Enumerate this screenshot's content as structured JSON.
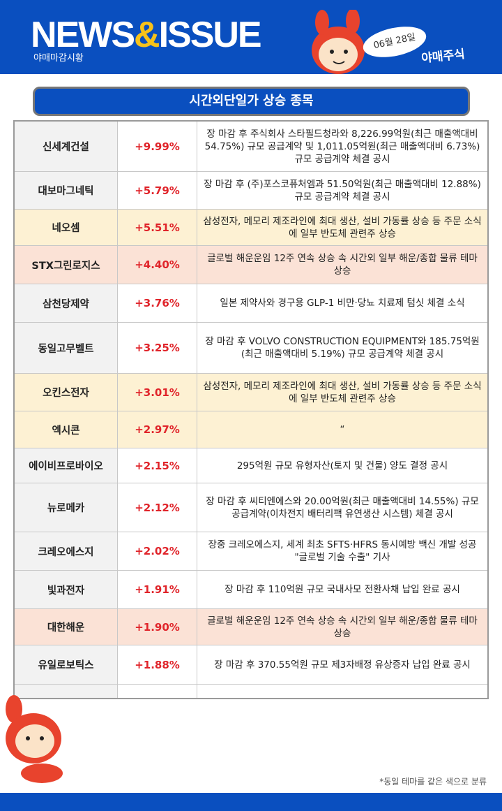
{
  "header": {
    "title_left": "NEWS",
    "title_amp": "&",
    "title_right": "ISSUE",
    "subtitle": "야매마감시황",
    "date": "06월 28일",
    "brand": "야매주식"
  },
  "section_title": "시간외단일가 상승 종목",
  "table": {
    "rows": [
      {
        "name": "신세계건설",
        "change": "+9.99%",
        "desc": "장 마감 후 주식회사 스타필드청라와 8,226.99억원(최근 매출액대비 54.75%) 규모 공급계약 및 1,011.05억원(최근 매출액대비 6.73%) 규모 공급계약 체결 공시",
        "color": "#f2f2f2"
      },
      {
        "name": "대보마그네틱",
        "change": "+5.79%",
        "desc": "장 마감 후 (주)포스코퓨처엠과 51.50억원(최근 매출액대비 12.88%) 규모 공급계약 체결 공시",
        "color": "#f2f2f2"
      },
      {
        "name": "네오셈",
        "change": "+5.51%",
        "desc": "삼성전자, 메모리 제조라인에 최대 생산, 설비 가동률 상승 등 주문 소식에 일부 반도체 관련주 상승",
        "color": "#fdf1d3"
      },
      {
        "name": "STX그린로지스",
        "change": "+4.40%",
        "desc": "글로벌 해운운임 12주 연속 상승 속 시간외 일부 해운/종합 물류 테마 상승",
        "color": "#fbe2d6"
      },
      {
        "name": "삼천당제약",
        "change": "+3.76%",
        "desc": "일본 제약사와 경구용 GLP-1 비만·당뇨 치료제 텀싯 체결 소식",
        "color": "#f2f2f2"
      },
      {
        "name": "동일고무벨트",
        "change": "+3.25%",
        "desc": "장 마감 후 VOLVO CONSTRUCTION EQUIPMENT와 185.75억원(최근 매출액대비 5.19%) 규모 공급계약 체결 공시",
        "color": "#f2f2f2"
      },
      {
        "name": "오킨스전자",
        "change": "+3.01%",
        "desc": "삼성전자, 메모리 제조라인에 최대 생산, 설비 가동률 상승 등 주문 소식에 일부 반도체 관련주 상승",
        "color": "#fdf1d3"
      },
      {
        "name": "엑시콘",
        "change": "+2.97%",
        "desc": "“",
        "color": "#fdf1d3"
      },
      {
        "name": "에이비프로바이오",
        "change": "+2.15%",
        "desc": "295억원 규모 유형자산(토지 및 건물) 양도 결정 공시",
        "color": "#f2f2f2"
      },
      {
        "name": "뉴로메카",
        "change": "+2.12%",
        "desc": "장 마감 후 씨티엔에스와 20.00억원(최근 매출액대비 14.55%) 규모 공급계약(이차전지 배터리팩 유연생산 시스템) 체결 공시",
        "color": "#f2f2f2"
      },
      {
        "name": "크레오에스지",
        "change": "+2.02%",
        "desc": "장중 크레오에스지, 세계 최초 SFTS·HFRS 동시예방 백신 개발 성공 \"글로벌 기술 수출\" 기사",
        "color": "#f2f2f2"
      },
      {
        "name": "빛과전자",
        "change": "+1.91%",
        "desc": "장 마감 후 110억원 규모 국내사모 전환사채 납입 완료 공시",
        "color": "#f2f2f2"
      },
      {
        "name": "대한해운",
        "change": "+1.90%",
        "desc": "글로벌 해운운임 12주 연속 상승 속 시간외 일부 해운/종합 물류 테마 상승",
        "color": "#fbe2d6"
      },
      {
        "name": "유일로보틱스",
        "change": "+1.88%",
        "desc": "장 마감 후 370.55억원 규모 제3자배정 유상증자 납입 완료 공시",
        "color": "#f2f2f2"
      }
    ]
  },
  "footnote": "*동일 테마를 같은 색으로 분류"
}
